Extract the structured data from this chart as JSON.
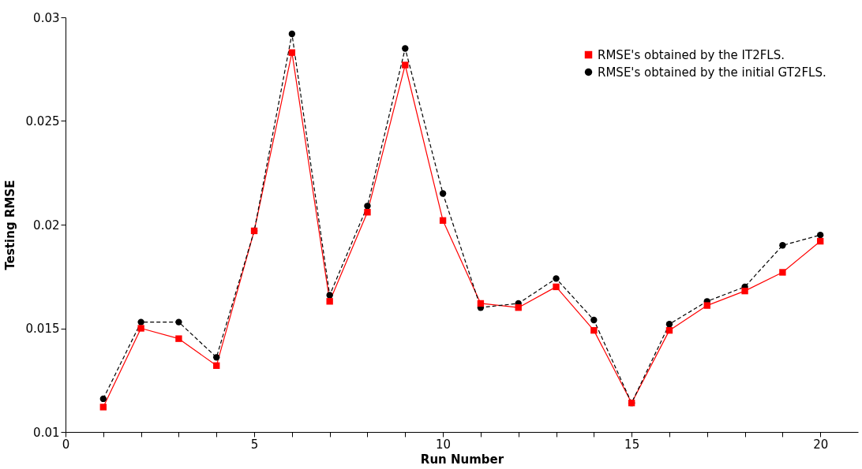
{
  "chart_data": {
    "type": "line",
    "xlabel": "Run Number",
    "ylabel": "Testing RMSE",
    "x": [
      1,
      2,
      3,
      4,
      5,
      6,
      7,
      8,
      9,
      10,
      11,
      12,
      13,
      14,
      15,
      16,
      17,
      18,
      19,
      20
    ],
    "series": [
      {
        "name": "RMSE's obtained by the IT2FLS.",
        "color": "#ff0000",
        "marker": "square",
        "line_style": "solid",
        "values": [
          0.0112,
          0.015,
          0.0145,
          0.0132,
          0.0197,
          0.0283,
          0.0163,
          0.0206,
          0.0277,
          0.0202,
          0.0162,
          0.016,
          0.017,
          0.0149,
          0.0114,
          0.0149,
          0.0161,
          0.0168,
          0.0177,
          0.0192
        ]
      },
      {
        "name": "RMSE's obtained by the initial GT2FLS.",
        "color": "#000000",
        "marker": "circle",
        "line_style": "dashed",
        "values": [
          0.0116,
          0.0153,
          0.0153,
          0.0136,
          0.0197,
          0.0292,
          0.0166,
          0.0209,
          0.0285,
          0.0215,
          0.016,
          0.0162,
          0.0174,
          0.0154,
          0.0114,
          0.0152,
          0.0163,
          0.017,
          0.019,
          0.0195
        ]
      }
    ],
    "xlim": [
      0,
      21
    ],
    "xticks": [
      0,
      {
        "value": 1,
        "label": null
      },
      {
        "value": 2,
        "label": null
      },
      {
        "value": 3,
        "label": null
      },
      {
        "value": 4,
        "label": null
      },
      5,
      {
        "value": 6,
        "label": null
      },
      {
        "value": 7,
        "label": null
      },
      {
        "value": 8,
        "label": null
      },
      {
        "value": 9,
        "label": null
      },
      10,
      {
        "value": 11,
        "label": null
      },
      {
        "value": 12,
        "label": null
      },
      {
        "value": 13,
        "label": null
      },
      {
        "value": 14,
        "label": null
      },
      15,
      {
        "value": 16,
        "label": null
      },
      {
        "value": 17,
        "label": null
      },
      {
        "value": 18,
        "label": null
      },
      {
        "value": 19,
        "label": null
      },
      20
    ],
    "ylim": [
      0.01,
      0.03
    ],
    "yticks": [
      0.01,
      0.015,
      0.02,
      0.025,
      0.03
    ],
    "grid": false,
    "legend": "top right"
  }
}
